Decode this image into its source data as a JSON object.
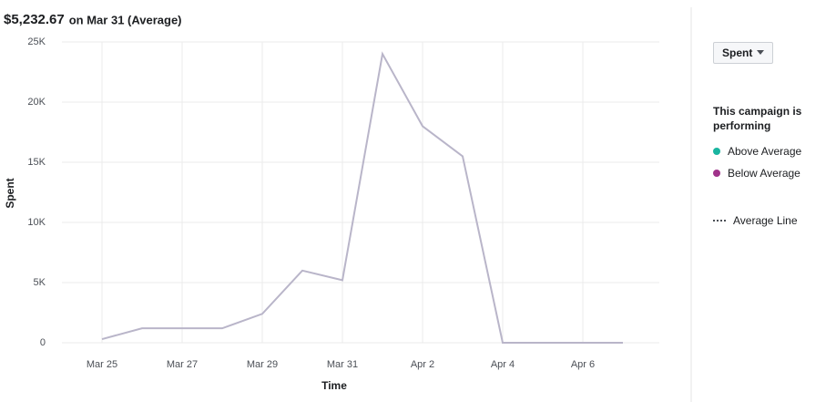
{
  "header": {
    "amount": "$5,232.67",
    "suffix": "on Mar 31 (Average)"
  },
  "chart_data": {
    "type": "line",
    "x_label": "Time",
    "y_label": "Spent",
    "categories": [
      "Mar 25",
      null,
      "Mar 27",
      null,
      "Mar 29",
      null,
      "Mar 31",
      null,
      "Apr 2",
      null,
      "Apr 4",
      null,
      "Apr 6",
      null
    ],
    "values": [
      300,
      1200,
      1200,
      1200,
      2400,
      6000,
      5200,
      24000,
      18000,
      15500,
      0,
      0,
      0,
      0
    ],
    "color": "#b9b5c9",
    "ylim": [
      0,
      25000
    ],
    "yticks": [
      0,
      {
        "value": 5000,
        "label": "5K"
      },
      {
        "value": 10000,
        "label": "10K"
      },
      {
        "value": 15000,
        "label": "15K"
      },
      {
        "value": 20000,
        "label": "20K"
      },
      {
        "value": 25000,
        "label": "25K"
      }
    ],
    "grid": true
  },
  "sidebar": {
    "dropdown": "Spent",
    "heading": "This campaign is performing",
    "legend": [
      {
        "label": "Above Average",
        "color": "#1ab5a0"
      },
      {
        "label": "Below Average",
        "color": "#a0328a"
      },
      {
        "label": "Average Line",
        "style": "dotted"
      }
    ]
  }
}
